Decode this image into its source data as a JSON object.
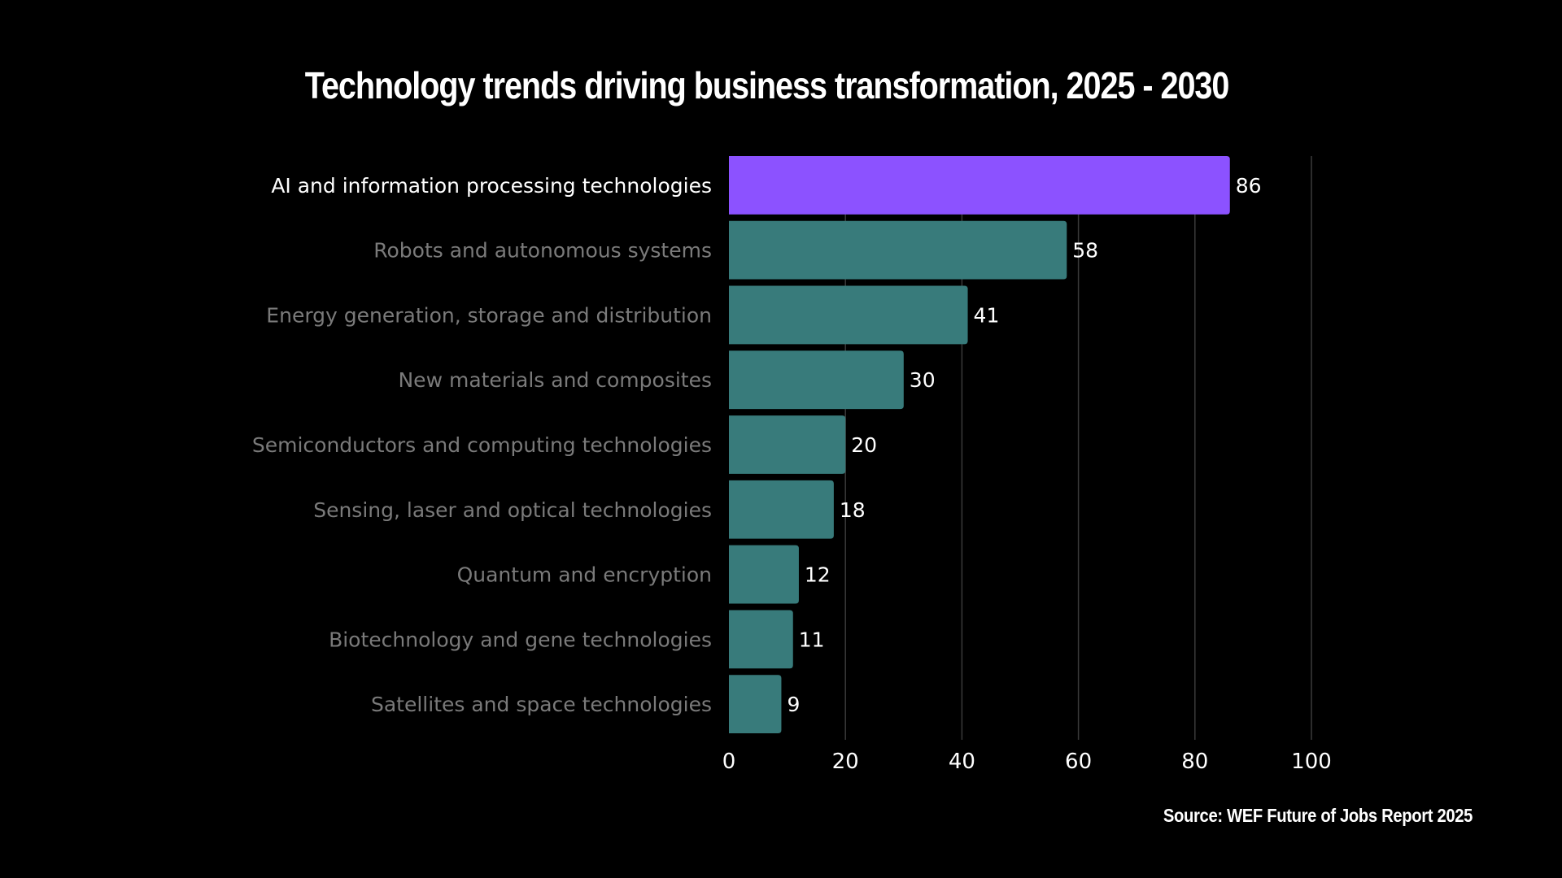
{
  "chart_data": {
    "type": "bar",
    "orientation": "horizontal",
    "title": "Technology trends driving business transformation, 2025 - 2030",
    "source": "Source: WEF Future of Jobs Report 2025",
    "xlabel": "",
    "ylabel": "",
    "xlim": [
      0,
      100
    ],
    "xticks": [
      0,
      20,
      40,
      60,
      80,
      100
    ],
    "grid": true,
    "categories": [
      "AI and information processing technologies",
      "Robots and autonomous systems",
      "Energy generation, storage and distribution",
      "New materials and composites",
      "Semiconductors and computing technologies",
      "Sensing, laser and optical technologies",
      "Quantum and encryption",
      "Biotechnology and gene technologies",
      "Satellites and space technologies"
    ],
    "values": [
      86,
      58,
      41,
      30,
      20,
      18,
      12,
      11,
      9
    ],
    "highlight_index": 0,
    "colors": {
      "highlight": "#8c52ff",
      "default": "#387b7b",
      "background": "#000000"
    }
  }
}
